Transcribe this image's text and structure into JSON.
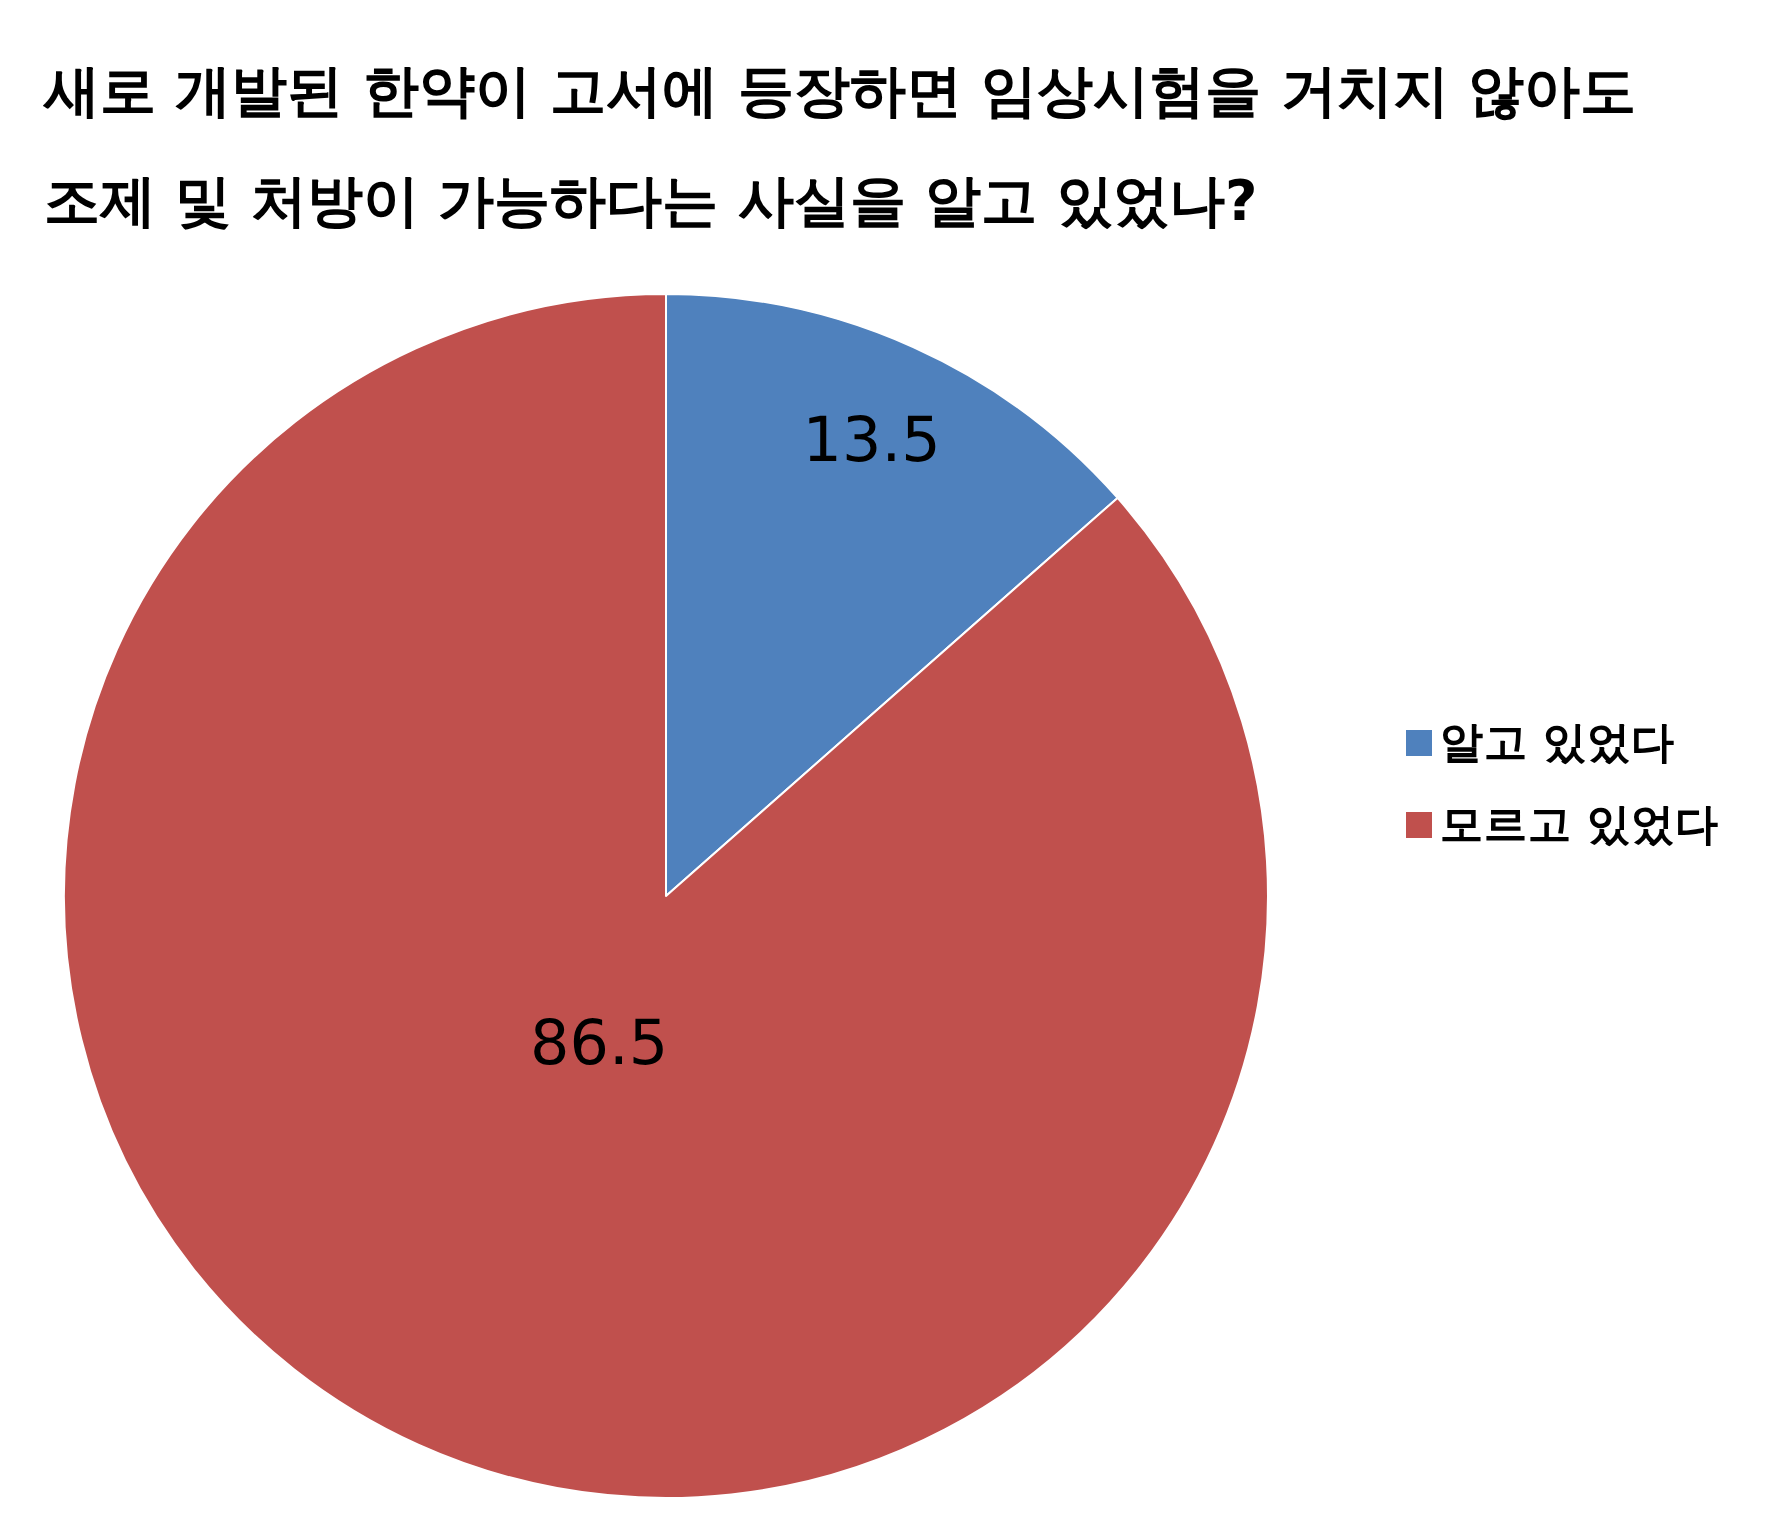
{
  "chart_data": {
    "type": "pie",
    "title": "새로 개발된 한약이 고서에 등장하면 임상시험을 거치지 않아도 조제 및 처방이 가능하다는 사실을 알고 있었나?",
    "categories": [
      "알고 있었다",
      "모르고 있었다"
    ],
    "values": [
      13.5,
      86.5
    ],
    "colors": [
      "#4f81bd",
      "#c0504d"
    ],
    "data_labels": true,
    "legend": "right"
  }
}
